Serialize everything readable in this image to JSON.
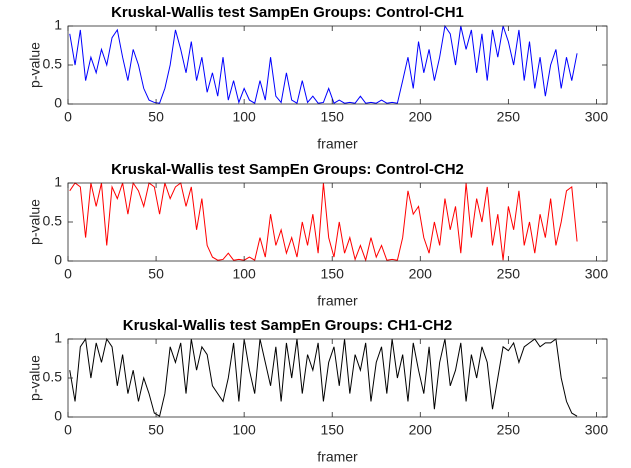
{
  "chart_data": [
    {
      "type": "line",
      "title": "Kruskal-Wallis test SampEn Groups: Control-CH1",
      "xlabel": "framer",
      "ylabel": "p-value",
      "x": [
        1,
        4,
        7,
        10,
        13,
        16,
        19,
        22,
        25,
        28,
        31,
        34,
        37,
        40,
        43,
        46,
        49,
        52,
        55,
        58,
        61,
        64,
        67,
        70,
        73,
        76,
        79,
        82,
        85,
        88,
        91,
        94,
        97,
        100,
        103,
        106,
        109,
        112,
        115,
        118,
        121,
        124,
        127,
        130,
        133,
        136,
        139,
        142,
        145,
        148,
        151,
        154,
        157,
        160,
        163,
        166,
        169,
        172,
        175,
        178,
        181,
        184,
        187,
        190,
        193,
        196,
        199,
        202,
        205,
        208,
        211,
        214,
        217,
        220,
        223,
        226,
        229,
        232,
        235,
        238,
        241,
        244,
        247,
        250,
        253,
        256,
        259,
        262,
        265,
        268,
        271,
        274,
        277,
        280,
        283,
        286,
        289
      ],
      "series": [
        {
          "color": "#0000ff",
          "values": [
            0.9,
            0.5,
            0.95,
            0.3,
            0.6,
            0.4,
            0.7,
            0.5,
            0.85,
            0.95,
            0.6,
            0.3,
            0.7,
            0.5,
            0.2,
            0.05,
            0.02,
            0.01,
            0.2,
            0.5,
            0.95,
            0.7,
            0.4,
            0.8,
            0.3,
            0.6,
            0.15,
            0.4,
            0.1,
            0.6,
            0.05,
            0.3,
            0.02,
            0.2,
            0.05,
            0.01,
            0.3,
            0.05,
            0.6,
            0.1,
            0.02,
            0.4,
            0.05,
            0.01,
            0.3,
            0.02,
            0.1,
            0.01,
            0.02,
            0.2,
            0.01,
            0.05,
            0.01,
            0.02,
            0.01,
            0.1,
            0.01,
            0.02,
            0.01,
            0.05,
            0.01,
            0.02,
            0.01,
            0.3,
            0.6,
            0.2,
            0.8,
            0.4,
            0.7,
            0.3,
            0.6,
            1,
            0.9,
            0.5,
            1,
            0.7,
            0.95,
            0.4,
            0.9,
            0.3,
            0.95,
            0.6,
            1,
            0.8,
            0.5,
            0.95,
            0.3,
            0.8,
            0.2,
            0.6,
            0.1,
            0.5,
            0.7,
            0.2,
            0.6,
            0.3,
            0.65
          ]
        }
      ],
      "xlim": [
        0,
        306
      ],
      "xticks": [
        0,
        50,
        100,
        150,
        200,
        250,
        300
      ],
      "ylim": [
        0,
        1
      ],
      "yticks": [
        0,
        0.5,
        1
      ]
    },
    {
      "type": "line",
      "title": "Kruskal-Wallis test SampEn Groups: Control-CH2",
      "xlabel": "framer",
      "ylabel": "p-value",
      "x": [
        1,
        4,
        7,
        10,
        13,
        16,
        19,
        22,
        25,
        28,
        31,
        34,
        37,
        40,
        43,
        46,
        49,
        52,
        55,
        58,
        61,
        64,
        67,
        70,
        73,
        76,
        79,
        82,
        85,
        88,
        91,
        94,
        97,
        100,
        103,
        106,
        109,
        112,
        115,
        118,
        121,
        124,
        127,
        130,
        133,
        136,
        139,
        142,
        145,
        148,
        151,
        154,
        157,
        160,
        163,
        166,
        169,
        172,
        175,
        178,
        181,
        184,
        187,
        190,
        193,
        196,
        199,
        202,
        205,
        208,
        211,
        214,
        217,
        220,
        223,
        226,
        229,
        232,
        235,
        238,
        241,
        244,
        247,
        250,
        253,
        256,
        259,
        262,
        265,
        268,
        271,
        274,
        277,
        280,
        283,
        286,
        289
      ],
      "series": [
        {
          "color": "#ff0000",
          "values": [
            0.9,
            1,
            0.95,
            0.3,
            1,
            0.7,
            1,
            0.2,
            0.95,
            0.8,
            1,
            0.6,
            1,
            0.9,
            0.7,
            1,
            0.95,
            0.6,
            1,
            0.8,
            0.95,
            1,
            0.7,
            0.95,
            0.4,
            0.8,
            0.2,
            0.05,
            0.01,
            0.02,
            0.1,
            0.01,
            0.02,
            0.01,
            0.05,
            0.01,
            0.3,
            0.05,
            0.6,
            0.2,
            0.4,
            0.1,
            0.3,
            0.05,
            0.5,
            0.2,
            0.6,
            0.1,
            1,
            0.3,
            0.05,
            0.5,
            0.1,
            0.3,
            0.02,
            0.2,
            0.01,
            0.3,
            0.05,
            0.2,
            0.01,
            0.02,
            0.01,
            0.3,
            0.9,
            0.6,
            0.7,
            0.3,
            0.1,
            0.5,
            0.2,
            0.8,
            0.4,
            0.7,
            0.1,
            1,
            0.3,
            0.8,
            0.5,
            0.95,
            0.2,
            0.6,
            0.01,
            0.7,
            0.4,
            0.9,
            0.2,
            0.5,
            0.1,
            0.6,
            0.3,
            0.8,
            0.2,
            0.5,
            0.9,
            0.95,
            0.25
          ]
        }
      ],
      "xlim": [
        0,
        306
      ],
      "xticks": [
        0,
        50,
        100,
        150,
        200,
        250,
        300
      ],
      "ylim": [
        0,
        1
      ],
      "yticks": [
        0,
        0.5,
        1
      ]
    },
    {
      "type": "line",
      "title": "Kruskal-Wallis test SampEn Groups: CH1-CH2",
      "xlabel": "framer",
      "ylabel": "p-value",
      "x": [
        1,
        4,
        7,
        10,
        13,
        16,
        19,
        22,
        25,
        28,
        31,
        34,
        37,
        40,
        43,
        46,
        49,
        52,
        55,
        58,
        61,
        64,
        67,
        70,
        73,
        76,
        79,
        82,
        85,
        88,
        91,
        94,
        97,
        100,
        103,
        106,
        109,
        112,
        115,
        118,
        121,
        124,
        127,
        130,
        133,
        136,
        139,
        142,
        145,
        148,
        151,
        154,
        157,
        160,
        163,
        166,
        169,
        172,
        175,
        178,
        181,
        184,
        187,
        190,
        193,
        196,
        199,
        202,
        205,
        208,
        211,
        214,
        217,
        220,
        223,
        226,
        229,
        232,
        235,
        238,
        241,
        244,
        247,
        250,
        253,
        256,
        259,
        262,
        265,
        268,
        271,
        274,
        277,
        280,
        283,
        286,
        289
      ],
      "series": [
        {
          "color": "#000000",
          "values": [
            0.6,
            0.2,
            0.9,
            1,
            0.5,
            0.95,
            0.7,
            1,
            0.9,
            0.4,
            0.8,
            0.3,
            0.6,
            0.2,
            0.5,
            0.3,
            0.05,
            0.01,
            0.3,
            0.9,
            0.7,
            0.95,
            0.3,
            1,
            0.6,
            0.9,
            0.8,
            0.4,
            0.3,
            0.2,
            0.5,
            0.95,
            0.2,
            1,
            0.6,
            0.3,
            1,
            0.7,
            0.4,
            0.9,
            0.2,
            0.95,
            0.5,
            1,
            0.3,
            0.8,
            0.6,
            0.95,
            0.2,
            0.7,
            0.9,
            0.4,
            1,
            0.3,
            0.8,
            0.6,
            0.95,
            0.2,
            0.7,
            0.9,
            0.3,
            1,
            0.5,
            0.8,
            0.2,
            0.95,
            0.6,
            0.3,
            0.9,
            0.1,
            0.7,
            1,
            0.4,
            0.6,
            0.95,
            0.2,
            0.8,
            0.5,
            0.9,
            0.7,
            0.1,
            0.5,
            0.9,
            0.85,
            0.95,
            0.7,
            0.9,
            0.95,
            1,
            0.9,
            0.95,
            0.95,
            1,
            0.5,
            0.2,
            0.05,
            0.01
          ]
        }
      ],
      "xlim": [
        0,
        306
      ],
      "xticks": [
        0,
        50,
        100,
        150,
        200,
        250,
        300
      ],
      "ylim": [
        0,
        1
      ],
      "yticks": [
        0,
        0.5,
        1
      ]
    }
  ]
}
